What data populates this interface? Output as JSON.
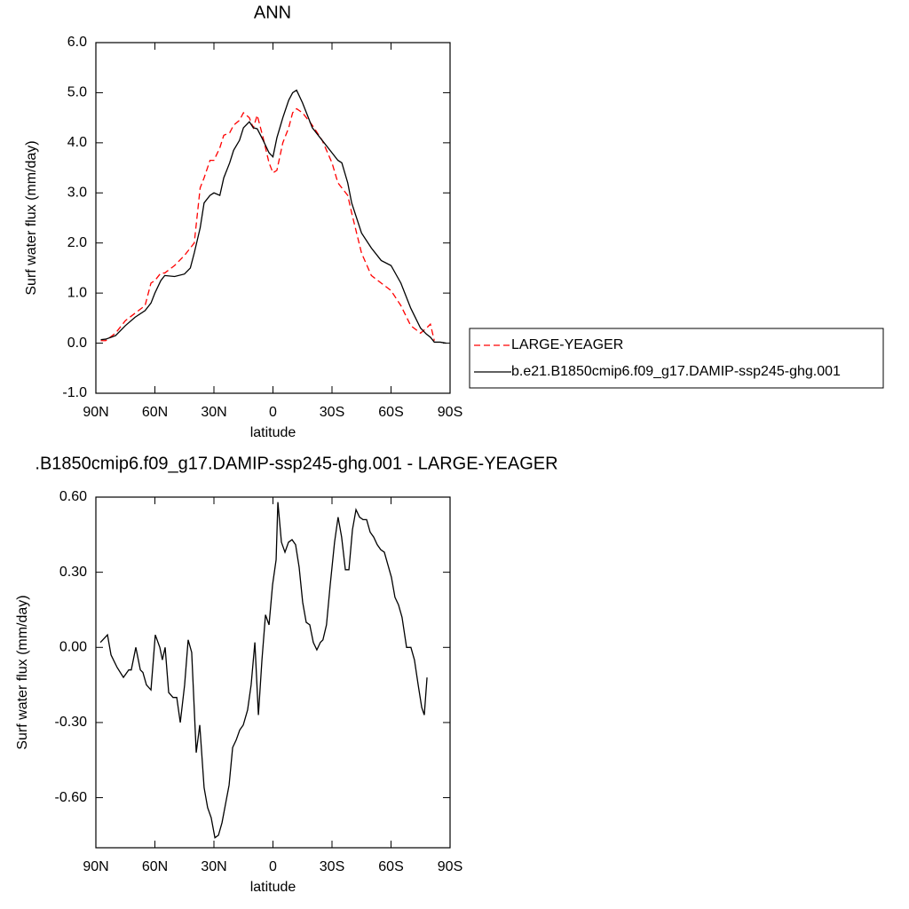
{
  "chart_data": [
    {
      "type": "line",
      "title": "ANN",
      "x_label": "latitude",
      "y_label": "Surf water flux (mm/day)",
      "xlim": [
        90,
        -90
      ],
      "xticks": [
        {
          "value": 90,
          "label": "90N"
        },
        {
          "value": 60,
          "label": "60N"
        },
        {
          "value": 30,
          "label": "30N"
        },
        0,
        {
          "value": -30,
          "label": "30S"
        },
        {
          "value": -60,
          "label": "60S"
        },
        {
          "value": -90,
          "label": "90S"
        }
      ],
      "ylim": [
        -1,
        6
      ],
      "yticks": [
        {
          "value": 6,
          "label": "6.0"
        },
        {
          "value": 5,
          "label": "5.0"
        },
        {
          "value": 4,
          "label": "4.0"
        },
        {
          "value": 3,
          "label": "3.0"
        },
        {
          "value": 2,
          "label": "2.0"
        },
        {
          "value": 1,
          "label": "1.0"
        },
        {
          "value": 0,
          "label": "0.0"
        },
        {
          "value": -1,
          "label": "-1.0"
        }
      ],
      "legend": "right",
      "x": [
        87.5,
        85,
        80,
        75,
        70,
        65,
        62,
        60,
        57,
        55,
        50,
        45,
        42,
        40,
        37,
        35,
        32,
        30,
        27,
        25,
        22,
        20,
        17,
        15,
        12,
        10,
        8,
        5,
        2,
        0,
        -2,
        -5,
        -8,
        -10,
        -12,
        -15,
        -18,
        -20,
        -25,
        -30,
        -33,
        -35,
        -38,
        -40,
        -45,
        -50,
        -55,
        -60,
        -65,
        -70,
        -75,
        -78,
        -80,
        -82,
        -85,
        -88
      ],
      "series": [
        {
          "name": "LARGE-YEAGER",
          "color": "#ff0000",
          "dash": true,
          "values": [
            0.05,
            0.05,
            0.2,
            0.45,
            0.6,
            0.75,
            1.2,
            1.25,
            1.4,
            1.4,
            1.55,
            1.75,
            1.9,
            2.0,
            3.1,
            3.3,
            3.65,
            3.65,
            3.9,
            4.15,
            4.2,
            4.35,
            4.45,
            4.6,
            4.5,
            4.3,
            4.55,
            4.1,
            3.6,
            3.4,
            3.45,
            4.0,
            4.3,
            4.6,
            4.68,
            4.6,
            4.45,
            4.35,
            4.05,
            3.6,
            3.2,
            3.1,
            2.95,
            2.6,
            1.8,
            1.35,
            1.2,
            1.05,
            0.75,
            0.35,
            0.2,
            0.3,
            0.38,
            0.05,
            null,
            null
          ]
        },
        {
          "name": "b.e21.B1850cmip6.f09_g17.DAMIP-ssp245-ghg.001",
          "color": "#000000",
          "dash": false,
          "values": [
            0.07,
            0.08,
            0.15,
            0.35,
            0.52,
            0.65,
            0.8,
            1.0,
            1.25,
            1.35,
            1.33,
            1.38,
            1.5,
            1.8,
            2.3,
            2.8,
            2.95,
            3.0,
            2.95,
            3.3,
            3.6,
            3.85,
            4.05,
            4.3,
            4.42,
            4.3,
            4.28,
            4.05,
            3.8,
            3.72,
            4.1,
            4.5,
            4.85,
            5.0,
            5.05,
            4.8,
            4.5,
            4.3,
            4.05,
            3.8,
            3.65,
            3.6,
            3.2,
            2.8,
            2.2,
            1.9,
            1.65,
            1.55,
            1.2,
            0.7,
            0.3,
            0.18,
            0.12,
            0.02,
            0.02,
            0.0
          ]
        }
      ]
    },
    {
      "type": "line",
      "title": ".B1850cmip6.f09_g17.DAMIP-ssp245-ghg.001 - LARGE-YEAGER",
      "x_label": "latitude",
      "y_label": "Surf water flux (mm/day)",
      "xlim": [
        90,
        -90
      ],
      "xticks": [
        {
          "value": 90,
          "label": "90N"
        },
        {
          "value": 60,
          "label": "60N"
        },
        {
          "value": 30,
          "label": "30N"
        },
        0,
        {
          "value": -30,
          "label": "30S"
        },
        {
          "value": -60,
          "label": "60S"
        },
        {
          "value": -90,
          "label": "90S"
        }
      ],
      "ylim": [
        -0.8,
        0.6
      ],
      "yticks": [
        {
          "value": 0.6,
          "label": "0.60"
        },
        {
          "value": 0.3,
          "label": "0.30"
        },
        {
          "value": 0,
          "label": "0.00"
        },
        {
          "value": -0.3,
          "label": "-0.30"
        },
        {
          "value": -0.6,
          "label": "-0.60"
        }
      ],
      "x": [
        87.7,
        84.1,
        82.3,
        79.2,
        76.0,
        73.3,
        72.0,
        69.7,
        67.4,
        66.1,
        64.3,
        62.0,
        59.8,
        57.5,
        56.2,
        54.8,
        53.0,
        50.8,
        48.9,
        47.1,
        44.9,
        43.1,
        41.3,
        39.0,
        37.2,
        35.0,
        33.2,
        31.4,
        29.5,
        27.7,
        25.9,
        22.3,
        20.5,
        18.7,
        16.9,
        15.1,
        12.9,
        11.1,
        9.2,
        7.4,
        5.6,
        3.8,
        2.0,
        0.2,
        -1.6,
        -2.5,
        -4.3,
        -6.1,
        -7.9,
        -9.7,
        -11.5,
        -13.3,
        -15.1,
        -16.9,
        -18.7,
        -20.5,
        -22.3,
        -24.1,
        -25.4,
        -27.2,
        -29.1,
        -31.3,
        -33.1,
        -34.9,
        -36.8,
        -38.6,
        -40.4,
        -42.2,
        -44.0,
        -45.8,
        -47.6,
        -49.4,
        -51.2,
        -53.0,
        -54.8,
        -56.6,
        -58.4,
        -60.2,
        -62.0,
        -63.8,
        -65.6,
        -67.9,
        -70.1,
        -71.9,
        -73.8,
        -75.6,
        -76.9,
        -78.3
      ],
      "series": [
        {
          "name": null,
          "color": "#000000",
          "dash": false,
          "values": [
            0.02,
            0.05,
            -0.03,
            -0.08,
            -0.12,
            -0.09,
            -0.09,
            0.0,
            -0.09,
            -0.1,
            -0.15,
            -0.17,
            0.05,
            0.0,
            -0.05,
            0.0,
            -0.18,
            -0.2,
            -0.2,
            -0.3,
            -0.15,
            0.03,
            -0.02,
            -0.42,
            -0.31,
            -0.56,
            -0.64,
            -0.68,
            -0.76,
            -0.75,
            -0.7,
            -0.55,
            -0.4,
            -0.37,
            -0.33,
            -0.31,
            -0.25,
            -0.15,
            0.02,
            -0.27,
            -0.05,
            0.13,
            0.09,
            0.25,
            0.35,
            0.58,
            0.42,
            0.38,
            0.42,
            0.43,
            0.41,
            0.32,
            0.18,
            0.1,
            0.09,
            0.02,
            -0.01,
            0.02,
            0.03,
            0.09,
            0.25,
            0.42,
            0.52,
            0.44,
            0.31,
            0.31,
            0.47,
            0.55,
            0.52,
            0.51,
            0.51,
            0.46,
            0.44,
            0.41,
            0.39,
            0.38,
            0.33,
            0.28,
            0.2,
            0.17,
            0.12,
            0.0,
            0.0,
            -0.05,
            -0.15,
            -0.24,
            -0.27,
            -0.12
          ]
        }
      ]
    }
  ]
}
